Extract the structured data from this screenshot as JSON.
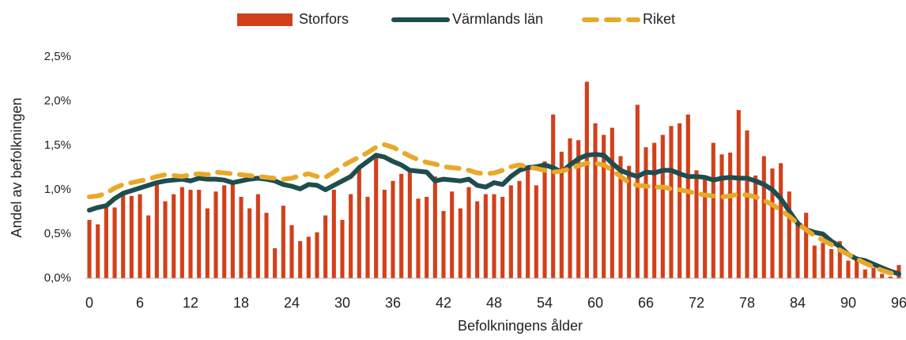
{
  "chart_data": {
    "type": "bar_line",
    "x_label": "Befolkningens ålder",
    "y_label": "Andel av befolkningen",
    "categories": [
      "0",
      null,
      null,
      null,
      null,
      null,
      "6",
      null,
      null,
      null,
      null,
      null,
      "12",
      null,
      null,
      null,
      null,
      null,
      "18",
      null,
      null,
      null,
      null,
      null,
      "24",
      null,
      null,
      null,
      null,
      null,
      "30",
      null,
      null,
      null,
      null,
      null,
      "36",
      null,
      null,
      null,
      null,
      null,
      "42",
      null,
      null,
      null,
      null,
      null,
      "48",
      null,
      null,
      null,
      null,
      null,
      "54",
      null,
      null,
      null,
      null,
      null,
      "60",
      null,
      null,
      null,
      null,
      null,
      "66",
      null,
      null,
      null,
      null,
      null,
      "72",
      null,
      null,
      null,
      null,
      null,
      "78",
      null,
      null,
      null,
      null,
      null,
      "84",
      null,
      null,
      null,
      null,
      null,
      "90",
      null,
      null,
      null,
      null,
      null,
      "96"
    ],
    "series": [
      {
        "name": "Storfors",
        "kind": "bar",
        "color": "#d2401a",
        "values": [
          0.66,
          0.61,
          0.8,
          0.8,
          0.95,
          0.93,
          0.95,
          0.71,
          1.1,
          0.87,
          0.95,
          1.03,
          1.0,
          1.0,
          0.79,
          0.98,
          1.05,
          1.1,
          0.92,
          0.79,
          0.95,
          0.74,
          0.34,
          0.82,
          0.6,
          0.42,
          0.47,
          0.52,
          0.71,
          1.0,
          0.66,
          0.95,
          1.25,
          0.92,
          1.37,
          1.0,
          1.1,
          1.18,
          1.2,
          0.9,
          0.92,
          1.15,
          0.76,
          0.98,
          0.79,
          1.03,
          0.87,
          0.95,
          0.95,
          0.92,
          1.05,
          1.1,
          1.25,
          1.05,
          1.32,
          1.85,
          1.43,
          1.58,
          1.56,
          2.22,
          1.75,
          1.62,
          1.7,
          1.38,
          1.27,
          1.96,
          1.48,
          1.53,
          1.62,
          1.72,
          1.75,
          1.85,
          1.22,
          1.15,
          1.53,
          1.4,
          1.42,
          1.9,
          1.67,
          1.16,
          1.38,
          1.24,
          1.3,
          0.98,
          0.65,
          0.74,
          0.37,
          0.4,
          0.33,
          0.42,
          0.2,
          0.22,
          0.1,
          0.12,
          0.05,
          0.02,
          0.15
        ]
      },
      {
        "name": "Värmlands län",
        "kind": "line",
        "color": "#1e4d4f",
        "values": [
          0.77,
          0.8,
          0.82,
          0.9,
          0.96,
          0.99,
          1.02,
          1.05,
          1.08,
          1.1,
          1.11,
          1.12,
          1.1,
          1.13,
          1.12,
          1.12,
          1.11,
          1.08,
          1.1,
          1.12,
          1.13,
          1.12,
          1.1,
          1.06,
          1.04,
          1.01,
          1.06,
          1.05,
          1.0,
          1.05,
          1.1,
          1.15,
          1.25,
          1.32,
          1.39,
          1.37,
          1.32,
          1.28,
          1.22,
          1.21,
          1.2,
          1.1,
          1.12,
          1.11,
          1.1,
          1.12,
          1.05,
          1.03,
          1.08,
          1.06,
          1.15,
          1.22,
          1.25,
          1.26,
          1.28,
          1.25,
          1.2,
          1.28,
          1.35,
          1.39,
          1.4,
          1.39,
          1.3,
          1.22,
          1.18,
          1.15,
          1.2,
          1.19,
          1.22,
          1.22,
          1.18,
          1.15,
          1.15,
          1.14,
          1.11,
          1.13,
          1.14,
          1.13,
          1.13,
          1.1,
          1.06,
          1.0,
          0.9,
          0.76,
          0.62,
          0.55,
          0.52,
          0.5,
          0.42,
          0.36,
          0.27,
          0.22,
          0.2,
          0.16,
          0.12,
          0.08,
          0.05
        ]
      },
      {
        "name": "Riket",
        "kind": "dashed",
        "color": "#e8a92a",
        "values": [
          0.92,
          0.93,
          0.96,
          1.02,
          1.06,
          1.08,
          1.1,
          1.12,
          1.15,
          1.17,
          1.16,
          1.15,
          1.17,
          1.18,
          1.17,
          1.2,
          1.19,
          1.18,
          1.17,
          1.16,
          1.15,
          1.14,
          1.13,
          1.12,
          1.13,
          1.16,
          1.18,
          1.15,
          1.14,
          1.2,
          1.27,
          1.32,
          1.37,
          1.42,
          1.48,
          1.51,
          1.48,
          1.43,
          1.38,
          1.34,
          1.31,
          1.29,
          1.26,
          1.25,
          1.24,
          1.22,
          1.19,
          1.18,
          1.19,
          1.22,
          1.26,
          1.28,
          1.26,
          1.24,
          1.22,
          1.2,
          1.21,
          1.24,
          1.27,
          1.3,
          1.3,
          1.28,
          1.22,
          1.15,
          1.08,
          1.05,
          1.04,
          1.03,
          1.03,
          1.01,
          1.0,
          0.98,
          0.96,
          0.94,
          0.93,
          0.92,
          0.93,
          0.95,
          0.94,
          0.92,
          0.88,
          0.83,
          0.77,
          0.7,
          0.62,
          0.55,
          0.48,
          0.43,
          0.38,
          0.32,
          0.27,
          0.22,
          0.17,
          0.13,
          0.09,
          0.06,
          0.04
        ]
      }
    ],
    "ylim": [
      0,
      2.5
    ],
    "yticks": [
      {
        "value": 0,
        "label": "0,0%"
      },
      {
        "value": 0.5,
        "label": "0,5%"
      },
      {
        "value": 1,
        "label": "1,0%"
      },
      {
        "value": 1.5,
        "label": "1,5%"
      },
      {
        "value": 2,
        "label": "2,0%"
      },
      {
        "value": 2.5,
        "label": "2,5%"
      }
    ],
    "legend": "top",
    "grid": false
  }
}
